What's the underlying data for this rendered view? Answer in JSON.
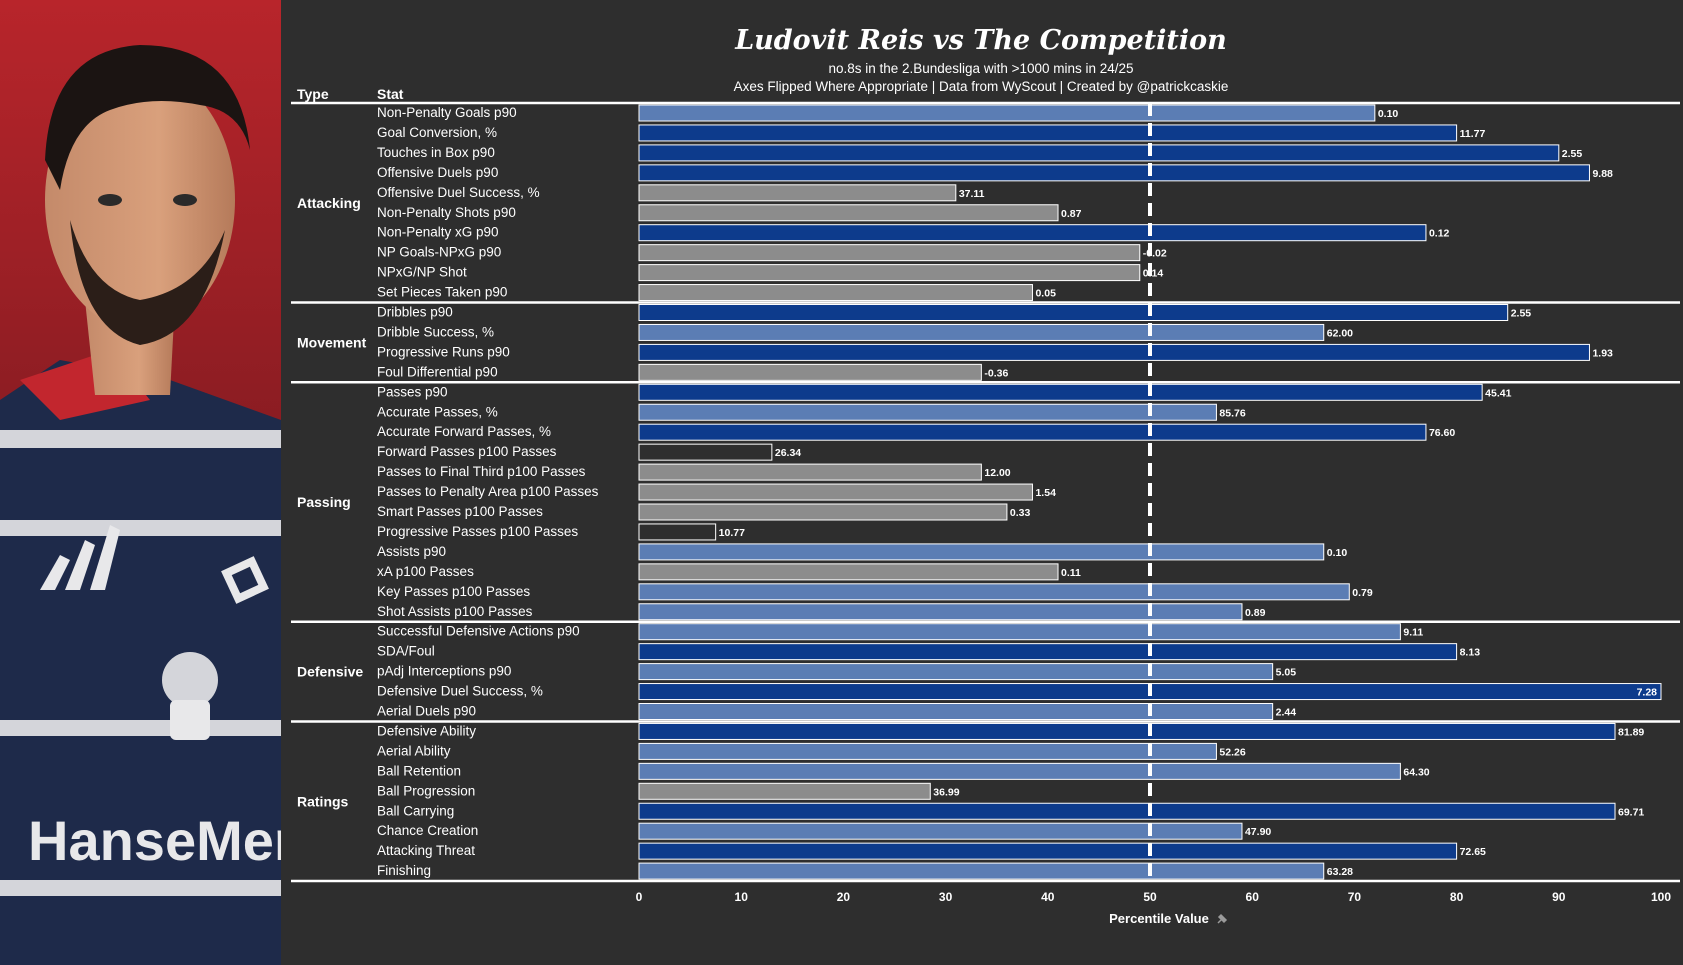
{
  "colors": {
    "background": "#2e2e2e",
    "dark_blue": "#0d3b8c",
    "light_blue": "#5b7db4",
    "grey": "#8c8c8c",
    "black": "#2e2e2e",
    "line": "#ffffff"
  },
  "photo": {
    "sponsor_text": "HanseMerk"
  },
  "chart_data": {
    "type": "bar",
    "orientation": "horizontal",
    "title": "Ludovit Reis vs The Competition",
    "subtitle_1": "no.8s in the 2.Bundesliga with >1000 mins in 24/25",
    "subtitle_2": "Axes Flipped Where Appropriate | Data from WyScout | Created by @patrickcaskie",
    "column_headers": {
      "type": "Type",
      "stat": "Stat"
    },
    "xlabel": "Percentile Value",
    "xlim": [
      0,
      100
    ],
    "xticks": [
      "0",
      "10",
      "20",
      "30",
      "40",
      "50",
      "60",
      "70",
      "80",
      "90",
      "100"
    ],
    "reference_line": 50,
    "groups": [
      {
        "name": "Attacking",
        "rows": [
          {
            "stat": "Non-Penalty Goals p90",
            "percentile": 72,
            "label": "0.10",
            "color": "light_blue"
          },
          {
            "stat": "Goal Conversion, %",
            "percentile": 80,
            "label": "11.77",
            "color": "dark_blue"
          },
          {
            "stat": "Touches in Box p90",
            "percentile": 90,
            "label": "2.55",
            "color": "dark_blue"
          },
          {
            "stat": "Offensive Duels p90",
            "percentile": 93,
            "label": "9.88",
            "color": "dark_blue"
          },
          {
            "stat": "Offensive Duel Success, %",
            "percentile": 31,
            "label": "37.11",
            "color": "grey"
          },
          {
            "stat": "Non-Penalty Shots p90",
            "percentile": 41,
            "label": "0.87",
            "color": "grey"
          },
          {
            "stat": "Non-Penalty xG p90",
            "percentile": 77,
            "label": "0.12",
            "color": "dark_blue"
          },
          {
            "stat": "NP Goals-NPxG p90",
            "percentile": 49,
            "label": "-0.02",
            "color": "grey"
          },
          {
            "stat": "NPxG/NP Shot",
            "percentile": 49,
            "label": "0.14",
            "color": "grey"
          },
          {
            "stat": "Set Pieces Taken p90",
            "percentile": 38.5,
            "label": "0.05",
            "color": "grey"
          }
        ]
      },
      {
        "name": "Movement",
        "rows": [
          {
            "stat": "Dribbles p90",
            "percentile": 85,
            "label": "2.55",
            "color": "dark_blue"
          },
          {
            "stat": "Dribble Success, %",
            "percentile": 67,
            "label": "62.00",
            "color": "light_blue"
          },
          {
            "stat": "Progressive Runs p90",
            "percentile": 93,
            "label": "1.93",
            "color": "dark_blue"
          },
          {
            "stat": "Foul Differential p90",
            "percentile": 33.5,
            "label": "-0.36",
            "color": "grey"
          }
        ]
      },
      {
        "name": "Passing",
        "rows": [
          {
            "stat": "Passes p90",
            "percentile": 82.5,
            "label": "45.41",
            "color": "dark_blue"
          },
          {
            "stat": "Accurate Passes, %",
            "percentile": 56.5,
            "label": "85.76",
            "color": "light_blue"
          },
          {
            "stat": "Accurate Forward Passes, %",
            "percentile": 77,
            "label": "76.60",
            "color": "dark_blue"
          },
          {
            "stat": "Forward Passes p100 Passes",
            "percentile": 13,
            "label": "26.34",
            "color": "black"
          },
          {
            "stat": "Passes to Final Third p100 Passes",
            "percentile": 33.5,
            "label": "12.00",
            "color": "grey"
          },
          {
            "stat": "Passes to Penalty Area p100 Passes",
            "percentile": 38.5,
            "label": "1.54",
            "color": "grey"
          },
          {
            "stat": "Smart Passes p100 Passes",
            "percentile": 36,
            "label": "0.33",
            "color": "grey"
          },
          {
            "stat": "Progressive Passes p100 Passes",
            "percentile": 7.5,
            "label": "10.77",
            "color": "black"
          },
          {
            "stat": "Assists p90",
            "percentile": 67,
            "label": "0.10",
            "color": "light_blue"
          },
          {
            "stat": "xA p100 Passes",
            "percentile": 41,
            "label": "0.11",
            "color": "grey"
          },
          {
            "stat": "Key Passes p100 Passes",
            "percentile": 69.5,
            "label": "0.79",
            "color": "light_blue"
          },
          {
            "stat": "Shot Assists p100 Passes",
            "percentile": 59,
            "label": "0.89",
            "color": "light_blue"
          }
        ]
      },
      {
        "name": "Defensive",
        "rows": [
          {
            "stat": "Successful Defensive Actions p90",
            "percentile": 74.5,
            "label": "9.11",
            "color": "light_blue"
          },
          {
            "stat": "SDA/Foul",
            "percentile": 80,
            "label": "8.13",
            "color": "dark_blue"
          },
          {
            "stat": "pAdj Interceptions p90",
            "percentile": 62,
            "label": "5.05",
            "color": "light_blue"
          },
          {
            "stat": "Defensive Duel Success, %",
            "percentile": 100,
            "label": "7.28",
            "color": "dark_blue"
          },
          {
            "stat": "Aerial Duels p90",
            "percentile": 62,
            "label": "2.44",
            "color": "light_blue"
          }
        ]
      },
      {
        "name": "Ratings",
        "rows": [
          {
            "stat": "Defensive Ability",
            "percentile": 95.5,
            "label": "81.89",
            "color": "dark_blue"
          },
          {
            "stat": "Aerial Ability",
            "percentile": 56.5,
            "label": "52.26",
            "color": "light_blue"
          },
          {
            "stat": "Ball Retention",
            "percentile": 74.5,
            "label": "64.30",
            "color": "light_blue"
          },
          {
            "stat": "Ball Progression",
            "percentile": 28.5,
            "label": "36.99",
            "color": "grey"
          },
          {
            "stat": "Ball Carrying",
            "percentile": 95.5,
            "label": "69.71",
            "color": "dark_blue"
          },
          {
            "stat": "Chance Creation",
            "percentile": 59,
            "label": "47.90",
            "color": "light_blue"
          },
          {
            "stat": "Attacking Threat",
            "percentile": 80,
            "label": "72.65",
            "color": "dark_blue"
          },
          {
            "stat": "Finishing",
            "percentile": 67,
            "label": "63.28",
            "color": "light_blue"
          }
        ]
      }
    ]
  }
}
